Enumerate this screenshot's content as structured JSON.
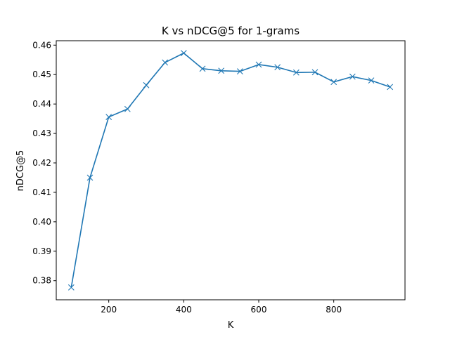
{
  "chart_data": {
    "type": "line",
    "title": "K vs nDCG@5 for 1-grams",
    "xlabel": "K",
    "ylabel": "nDCG@5",
    "xlim": [
      60,
      990
    ],
    "ylim": [
      0.3735,
      0.4615
    ],
    "xticks": [
      200,
      400,
      600,
      800
    ],
    "xtick_labels": [
      "200",
      "400",
      "600",
      "800"
    ],
    "yticks": [
      0.38,
      0.39,
      0.4,
      0.41,
      0.42,
      0.43,
      0.44,
      0.45,
      0.46
    ],
    "ytick_labels": [
      "0.38",
      "0.39",
      "0.40",
      "0.41",
      "0.42",
      "0.43",
      "0.44",
      "0.45",
      "0.46"
    ],
    "grid": false,
    "line_color": "#1f77b4",
    "marker": "x",
    "x": [
      100,
      150,
      200,
      250,
      300,
      350,
      400,
      450,
      500,
      550,
      600,
      650,
      700,
      750,
      800,
      850,
      900,
      950
    ],
    "y": [
      0.3777,
      0.415,
      0.4356,
      0.4383,
      0.4464,
      0.4541,
      0.4573,
      0.452,
      0.4513,
      0.4511,
      0.4534,
      0.4525,
      0.4507,
      0.4508,
      0.4475,
      0.4493,
      0.448,
      0.4458
    ]
  }
}
